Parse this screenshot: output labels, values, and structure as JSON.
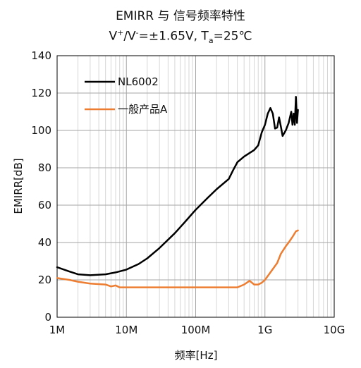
{
  "title": "EMIRR 与 信号频率特性",
  "subtitle": {
    "v": "V",
    "plus": "+",
    "slash": "/V",
    "minus": "-",
    "rest": "=±1.65V, T",
    "a": "a",
    "temp": "=25℃"
  },
  "chart_data": {
    "type": "line",
    "title": "EMIRR 与 信号频率特性",
    "xlabel": "频率[Hz]",
    "ylabel": "EMIRR[dB]",
    "xscale": "log",
    "xlim": [
      1000000,
      10000000000
    ],
    "ylim": [
      0,
      140
    ],
    "grid": true,
    "legend_position": "top-left",
    "x_ticks": [
      {
        "value": 1000000,
        "label": "1M"
      },
      {
        "value": 10000000,
        "label": "10M"
      },
      {
        "value": 100000000,
        "label": "100M"
      },
      {
        "value": 1000000000,
        "label": "1G"
      },
      {
        "value": 10000000000,
        "label": "10G"
      }
    ],
    "y_ticks": [
      {
        "value": 0,
        "label": "0"
      },
      {
        "value": 20,
        "label": "20"
      },
      {
        "value": 40,
        "label": "40"
      },
      {
        "value": 60,
        "label": "60"
      },
      {
        "value": 80,
        "label": "80"
      },
      {
        "value": 100,
        "label": "100"
      },
      {
        "value": 120,
        "label": "120"
      },
      {
        "value": 140,
        "label": "140"
      }
    ],
    "series": [
      {
        "name": "NL6002",
        "color": "#000000",
        "points": [
          [
            1000000,
            26.8
          ],
          [
            1500000,
            24.5
          ],
          [
            2000000,
            23.0
          ],
          [
            3000000,
            22.5
          ],
          [
            5000000,
            23.0
          ],
          [
            7000000,
            24.0
          ],
          [
            10000000,
            25.5
          ],
          [
            15000000,
            28.5
          ],
          [
            20000000,
            31.5
          ],
          [
            30000000,
            37.0
          ],
          [
            50000000,
            45.0
          ],
          [
            70000000,
            51.0
          ],
          [
            100000000,
            57.5
          ],
          [
            150000000,
            64.0
          ],
          [
            200000000,
            68.5
          ],
          [
            300000000,
            74.0
          ],
          [
            350000000,
            79.0
          ],
          [
            400000000,
            83.0
          ],
          [
            500000000,
            86.0
          ],
          [
            700000000,
            89.5
          ],
          [
            800000000,
            92.0
          ],
          [
            900000000,
            99.0
          ],
          [
            1000000000,
            103.0
          ],
          [
            1100000000,
            109.0
          ],
          [
            1200000000,
            112.0
          ],
          [
            1300000000,
            109.0
          ],
          [
            1400000000,
            101.0
          ],
          [
            1500000000,
            101.5
          ],
          [
            1600000000,
            107.0
          ],
          [
            1700000000,
            102.0
          ],
          [
            1800000000,
            97.0
          ],
          [
            2000000000,
            100.0
          ],
          [
            2200000000,
            104.0
          ],
          [
            2400000000,
            110.0
          ],
          [
            2500000000,
            103.0
          ],
          [
            2600000000,
            109.0
          ],
          [
            2700000000,
            103.0
          ],
          [
            2800000000,
            118.0
          ],
          [
            2900000000,
            104.0
          ],
          [
            3000000000,
            111.0
          ]
        ]
      },
      {
        "name": "一般产品A",
        "color": "#ed7d31",
        "points": [
          [
            1000000,
            21.0
          ],
          [
            1500000,
            20.0
          ],
          [
            2000000,
            19.0
          ],
          [
            3000000,
            18.0
          ],
          [
            5000000,
            17.5
          ],
          [
            6000000,
            16.5
          ],
          [
            7000000,
            17.0
          ],
          [
            8000000,
            16.0
          ],
          [
            10000000,
            16.0
          ],
          [
            20000000,
            16.0
          ],
          [
            50000000,
            16.0
          ],
          [
            100000000,
            16.0
          ],
          [
            200000000,
            16.0
          ],
          [
            400000000,
            16.0
          ],
          [
            500000000,
            17.5
          ],
          [
            600000000,
            19.5
          ],
          [
            700000000,
            17.5
          ],
          [
            800000000,
            17.5
          ],
          [
            900000000,
            18.5
          ],
          [
            1000000000,
            20.0
          ],
          [
            1200000000,
            24.0
          ],
          [
            1500000000,
            29.0
          ],
          [
            1700000000,
            34.0
          ],
          [
            2000000000,
            38.0
          ],
          [
            2200000000,
            40.0
          ],
          [
            2500000000,
            43.0
          ],
          [
            2800000000,
            46.0
          ],
          [
            3000000000,
            46.5
          ]
        ]
      }
    ]
  }
}
